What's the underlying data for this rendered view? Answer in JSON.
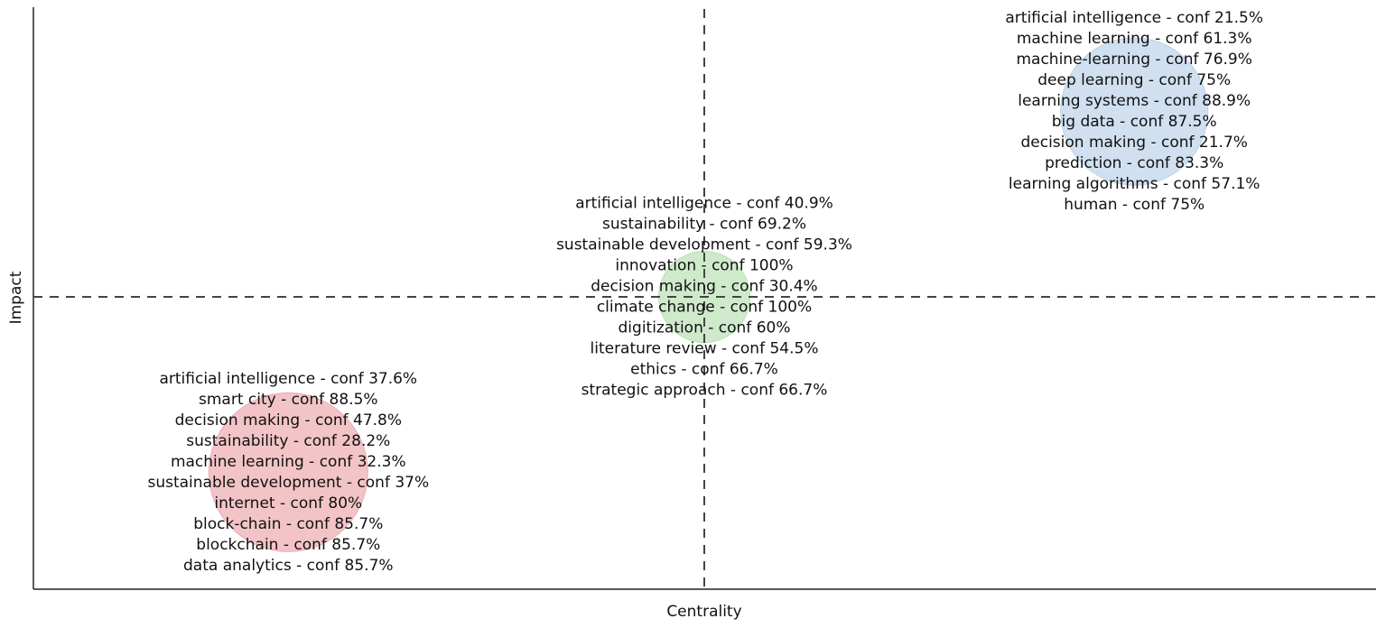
{
  "chart_data": {
    "type": "scatter",
    "subtype": "thematic-map-bubble",
    "xlabel": "Centrality",
    "ylabel": "Impact",
    "title": "",
    "grid": false,
    "legend": "none",
    "quadrant_lines": "dashed at the midpoints of both axes",
    "clusters": [
      {
        "color": "#e8939a",
        "x": 0.19,
        "y": 0.2,
        "size": 1.0,
        "labels": [
          "artificial intelligence - conf 37.6%",
          "smart city - conf 88.5%",
          "decision making - conf 47.8%",
          "sustainability - conf 28.2%",
          "machine learning - conf 32.3%",
          "sustainable development - conf 37%",
          "internet - conf 80%",
          "block-chain - conf 85.7%",
          "blockchain - conf 85.7%",
          "data analytics - conf 85.7%"
        ]
      },
      {
        "color": "#a7d9a0",
        "x": 0.5,
        "y": 0.5,
        "size": 0.33,
        "labels": [
          "artificial intelligence - conf 40.9%",
          "sustainability - conf 69.2%",
          "sustainable development - conf 59.3%",
          "innovation - conf 100%",
          "decision making - conf 30.4%",
          "climate change - conf 100%",
          "digitization - conf 60%",
          "literature review - conf 54.5%",
          "ethics - conf 66.7%",
          "strategic approach - conf 66.7%"
        ]
      },
      {
        "color": "#a9c6e4",
        "x": 0.82,
        "y": 0.82,
        "size": 0.86,
        "labels": [
          "artificial intelligence - conf 21.5%",
          "machine learning - conf 61.3%",
          "machine-learning - conf 76.9%",
          "deep learning - conf 75%",
          "learning systems - conf 88.9%",
          "big data - conf 87.5%",
          "decision making - conf 21.7%",
          "prediction - conf 83.3%",
          "learning algorithms - conf 57.1%",
          "human - conf 75%"
        ]
      }
    ]
  }
}
